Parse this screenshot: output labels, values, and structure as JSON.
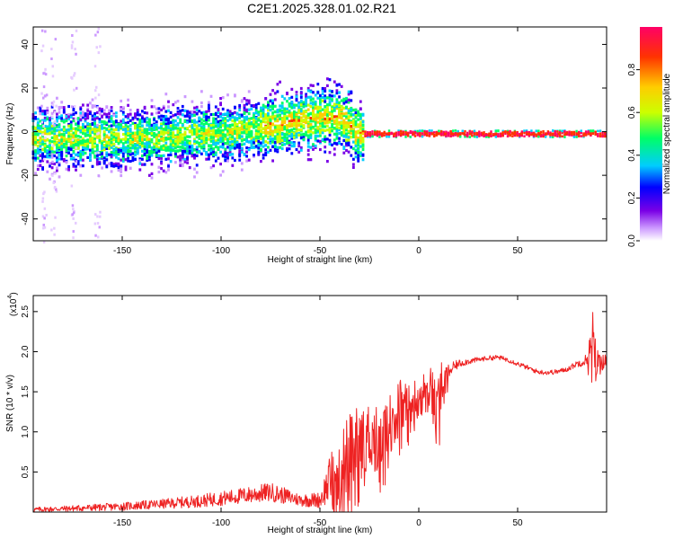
{
  "title": "C2E1.2025.328.01.02.R21",
  "top_xlabel": "Height of straight line (km)",
  "top_ylabel": "Frequency (Hz)",
  "colorbar_label": "Normalized spectral amplitude",
  "bottom_xlabel": "Height of straight line (km)",
  "bottom_ylabel": "SNR (10 * v/v)",
  "bottom_scale": "(x10",
  "bottom_scale_exp": "4",
  "bottom_scale_close": ")",
  "colors": {
    "snr_line": "#ee2222",
    "axes": "#000000"
  },
  "chart_data": [
    {
      "type": "heatmap",
      "name": "spectrogram",
      "xlabel": "Height of straight line (km)",
      "ylabel": "Frequency (Hz)",
      "xlim": [
        -195,
        95
      ],
      "ylim": [
        -50,
        48
      ],
      "x_ticks": [
        -150,
        -100,
        -50,
        0,
        50
      ],
      "x_tick_labels": [
        "-150",
        "-100",
        "-50",
        "0",
        "50"
      ],
      "y_ticks": [
        -40,
        -20,
        0,
        20,
        40
      ],
      "y_tick_labels": [
        "-40",
        "-20",
        "0",
        "20",
        "40"
      ],
      "ridge": {
        "x": [
          -190,
          -150,
          -100,
          -60,
          -40,
          -30,
          95
        ],
        "freq": [
          -3,
          -3,
          -1,
          5,
          7,
          -1,
          -1
        ]
      },
      "colorbar": {
        "range": [
          0.0,
          1.0
        ],
        "ticks": [
          0.0,
          0.2,
          0.4,
          0.6,
          0.8
        ],
        "tick_labels": [
          "0.0",
          "0.2",
          "0.4",
          "0.6",
          "0.8"
        ],
        "colormap": [
          "#ffffff",
          "#cc99ff",
          "#7a00e6",
          "#0000ff",
          "#00ccff",
          "#00ff66",
          "#ccff00",
          "#ffcc00",
          "#ff3300",
          "#ff0066"
        ]
      }
    },
    {
      "type": "line",
      "name": "snr",
      "xlabel": "Height of straight line (km)",
      "ylabel": "SNR (10 * v/v)",
      "xlim": [
        -195,
        95
      ],
      "ylim": [
        0,
        2.7
      ],
      "y_scale": "x10^4",
      "x_ticks": [
        -150,
        -100,
        -50,
        0,
        50
      ],
      "x_tick_labels": [
        "-150",
        "-100",
        "-50",
        "0",
        "50"
      ],
      "y_ticks": [
        0.5,
        1.0,
        1.5,
        2.0,
        2.5
      ],
      "y_tick_labels": [
        "0.5",
        "1.0",
        "1.5",
        "2.0",
        "2.5"
      ],
      "series": [
        {
          "name": "SNR",
          "x": [
            -195,
            -170,
            -150,
            -130,
            -110,
            -90,
            -75,
            -60,
            -50,
            -45,
            -40,
            -35,
            -30,
            -25,
            -20,
            -15,
            -10,
            -5,
            0,
            5,
            10,
            15,
            20,
            25,
            30,
            35,
            40,
            45,
            50,
            55,
            60,
            65,
            70,
            75,
            80,
            85,
            88,
            90,
            95
          ],
          "mean": [
            0.03,
            0.05,
            0.07,
            0.1,
            0.14,
            0.2,
            0.25,
            0.15,
            0.15,
            0.4,
            0.55,
            0.7,
            0.9,
            0.95,
            0.95,
            1.15,
            1.3,
            1.35,
            1.45,
            1.55,
            1.5,
            1.75,
            1.85,
            1.88,
            1.9,
            1.92,
            1.93,
            1.9,
            1.85,
            1.8,
            1.75,
            1.74,
            1.75,
            1.78,
            1.85,
            1.9,
            1.95,
            1.85,
            1.9
          ],
          "spread": [
            0.03,
            0.04,
            0.05,
            0.06,
            0.08,
            0.1,
            0.12,
            0.08,
            0.1,
            0.3,
            0.55,
            0.55,
            0.45,
            0.45,
            0.45,
            0.4,
            0.35,
            0.3,
            0.25,
            0.25,
            0.45,
            0.1,
            0.05,
            0.04,
            0.03,
            0.03,
            0.03,
            0.03,
            0.03,
            0.03,
            0.03,
            0.03,
            0.03,
            0.03,
            0.04,
            0.08,
            0.6,
            0.2,
            0.06
          ]
        }
      ]
    }
  ]
}
